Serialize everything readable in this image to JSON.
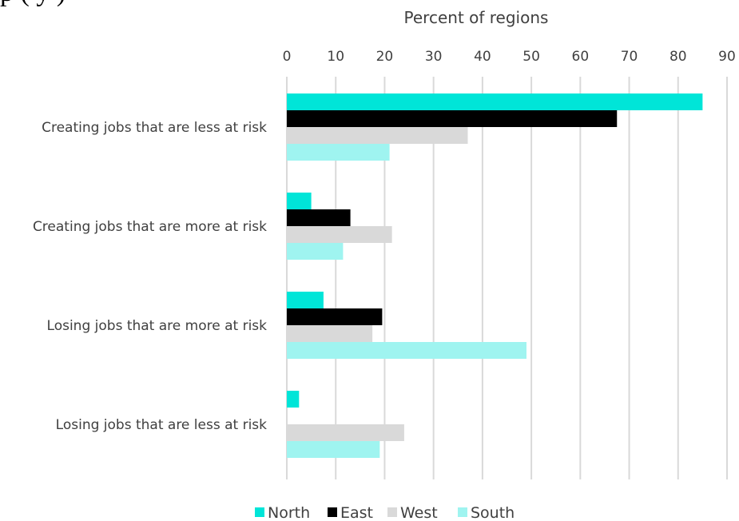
{
  "cropped_text": "p ( y )",
  "chart_data": {
    "type": "bar",
    "orientation": "horizontal",
    "title": "",
    "xlabel": "Percent of regions",
    "ylabel": "",
    "xlim": [
      0,
      90
    ],
    "xticks": [
      0,
      10,
      20,
      30,
      40,
      50,
      60,
      70,
      80,
      90
    ],
    "xaxis_position": "top",
    "grid": "vertical",
    "categories": [
      "Creating jobs that are less at risk",
      "Creating jobs that are more at risk",
      "Losing jobs that are more at risk",
      "Losing jobs that are less at risk"
    ],
    "series": [
      {
        "name": "North",
        "color": "#00e5d8",
        "values": [
          85,
          5,
          7.5,
          2.5
        ]
      },
      {
        "name": "East",
        "color": "#000000",
        "values": [
          67.5,
          13,
          19.5,
          0
        ]
      },
      {
        "name": "West",
        "color": "#d9d9d9",
        "values": [
          37,
          21.5,
          17.5,
          24
        ]
      },
      {
        "name": "South",
        "color": "#9ff4f0",
        "values": [
          21,
          11.5,
          49,
          19
        ]
      }
    ],
    "legend_position": "bottom"
  }
}
